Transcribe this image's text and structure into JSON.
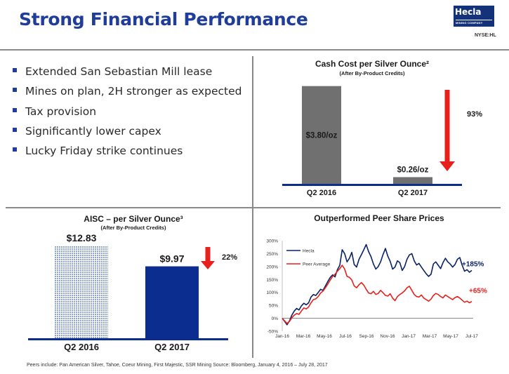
{
  "page": {
    "title": "Strong Financial Performance",
    "logo_name": "Hecla",
    "logo_tagline": "MINING COMPANY",
    "ticker": "NYSE:HL"
  },
  "bullets": [
    "Extended San Sebastian Mill lease",
    "Mines on plan, 2H stronger as expected",
    "Tax provision",
    "Significantly lower capex",
    "Lucky Friday strike continues"
  ],
  "colors": {
    "title_blue": "#1f3d99",
    "navy": "#0a2d8f",
    "gray_bar": "#707070",
    "red": "#e8201b",
    "hatch_blue": "#8fa3d4"
  },
  "chart_data": [
    {
      "type": "bar",
      "title": "Cash Cost per Silver Ounce²",
      "subtitle": "(After By-Product Credits)",
      "categories": [
        "Q2 2016",
        "Q2 2017"
      ],
      "values": [
        3.8,
        0.26
      ],
      "data_labels": [
        "$3.80/oz",
        "$0.26/oz"
      ],
      "change_label": "93%",
      "arrow": "down",
      "ylim": [
        0,
        4.2
      ]
    },
    {
      "type": "bar",
      "title": "AISC – per Silver Ounce³",
      "subtitle": "(After By-Product Credits)",
      "categories": [
        "Q2 2016",
        "Q2 2017"
      ],
      "values": [
        12.83,
        9.97
      ],
      "data_labels": [
        "$12.83",
        "$9.97"
      ],
      "change_label": "22%",
      "arrow": "down",
      "ylim": [
        0,
        14.5
      ]
    },
    {
      "type": "line",
      "title": "Outperformed Peer Share Prices",
      "x_ticks": [
        "Jan-16",
        "Mar-16",
        "May-16",
        "Jul-16",
        "Sep-16",
        "Nov-16",
        "Jan-17",
        "Mar-17",
        "May-17",
        "Jul-17"
      ],
      "y_ticks": [
        "300%",
        "250%",
        "200%",
        "150%",
        "100%",
        "50%",
        "0%",
        "-50%"
      ],
      "ylim": [
        -50,
        300
      ],
      "series": [
        {
          "name": "Hecla",
          "color": "#0a2266",
          "end_label": "+185%",
          "x": [
            0,
            1,
            2,
            3,
            4,
            5,
            6,
            7,
            8,
            9,
            10,
            11,
            12,
            13,
            14,
            15,
            16,
            17,
            18,
            19,
            20,
            21,
            22,
            23,
            24,
            25,
            26,
            27,
            28,
            29,
            30,
            31,
            32,
            33,
            34,
            35,
            36,
            37,
            38,
            39,
            40,
            41,
            42,
            43,
            44,
            45,
            46,
            47,
            48,
            49,
            50,
            51,
            52,
            53,
            54,
            55,
            56,
            57,
            58,
            59,
            60,
            61,
            62,
            63,
            64,
            65,
            66,
            67,
            68,
            69,
            70,
            71,
            72,
            73,
            74,
            75,
            76,
            77,
            78,
            79
          ],
          "y": [
            0,
            -12,
            -25,
            -10,
            12,
            28,
            38,
            32,
            48,
            58,
            52,
            60,
            82,
            92,
            88,
            100,
            112,
            108,
            125,
            142,
            158,
            168,
            160,
            188,
            205,
            265,
            250,
            218,
            232,
            255,
            208,
            198,
            228,
            246,
            265,
            285,
            258,
            238,
            210,
            190,
            200,
            218,
            246,
            270,
            240,
            220,
            190,
            198,
            222,
            215,
            185,
            200,
            228,
            245,
            250,
            222,
            206,
            212,
            198,
            185,
            172,
            162,
            170,
            210,
            218,
            205,
            192,
            215,
            232,
            218,
            210,
            198,
            208,
            228,
            235,
            205,
            182,
            188,
            178,
            185
          ]
        },
        {
          "name": "Peer Average",
          "color": "#e8201b",
          "end_label": "+65%",
          "x": [
            0,
            1,
            2,
            3,
            4,
            5,
            6,
            7,
            8,
            9,
            10,
            11,
            12,
            13,
            14,
            15,
            16,
            17,
            18,
            19,
            20,
            21,
            22,
            23,
            24,
            25,
            26,
            27,
            28,
            29,
            30,
            31,
            32,
            33,
            34,
            35,
            36,
            37,
            38,
            39,
            40,
            41,
            42,
            43,
            44,
            45,
            46,
            47,
            48,
            49,
            50,
            51,
            52,
            53,
            54,
            55,
            56,
            57,
            58,
            59,
            60,
            61,
            62,
            63,
            64,
            65,
            66,
            67,
            68,
            69,
            70,
            71,
            72,
            73,
            74,
            75,
            76,
            77,
            78,
            79
          ],
          "y": [
            0,
            -10,
            -20,
            -12,
            2,
            12,
            18,
            15,
            28,
            40,
            36,
            44,
            60,
            72,
            75,
            84,
            98,
            105,
            118,
            132,
            148,
            162,
            170,
            182,
            192,
            205,
            190,
            162,
            158,
            148,
            125,
            118,
            130,
            138,
            128,
            112,
            98,
            95,
            104,
            92,
            96,
            108,
            99,
            88,
            86,
            95,
            78,
            68,
            84,
            92,
            98,
            106,
            118,
            124,
            108,
            92,
            84,
            82,
            90,
            78,
            72,
            66,
            74,
            88,
            96,
            92,
            84,
            79,
            90,
            84,
            78,
            72,
            80,
            84,
            78,
            70,
            62,
            66,
            60,
            65
          ]
        }
      ]
    }
  ],
  "footer": "Peers include: Pan American Silver, Tahoe, Coeur Mining, First Majestic, SSR Mining Source: Bloomberg, January 4, 2016 – July 28, 2017"
}
